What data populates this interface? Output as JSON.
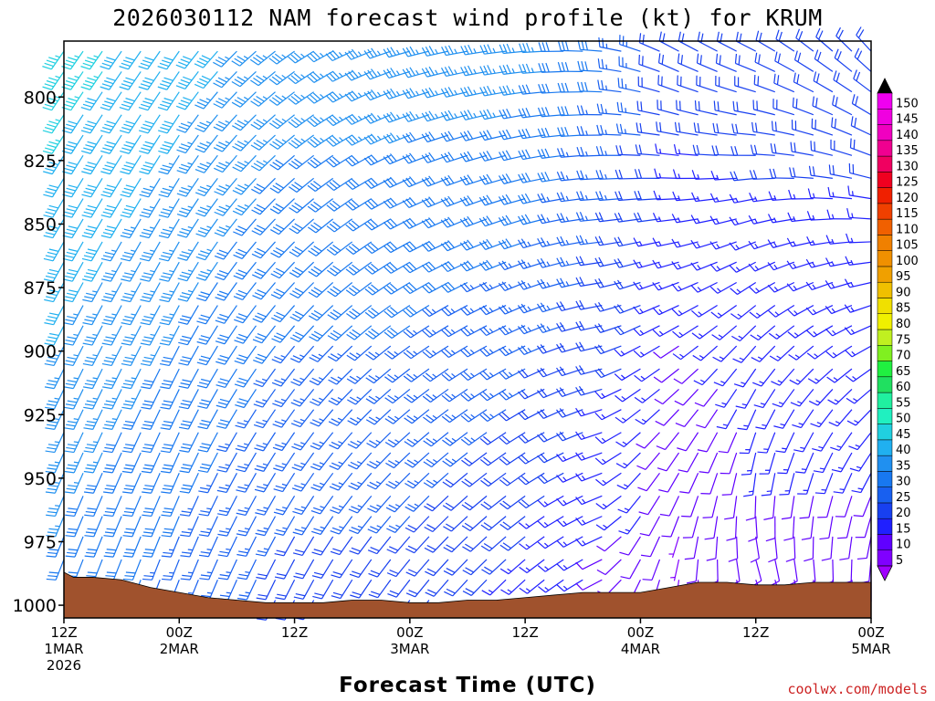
{
  "chart_data": {
    "type": "wind-barb-time-height",
    "title": "2026030112 NAM forecast wind profile (kt) for KRUM",
    "xlabel": "Forecast Time (UTC)",
    "ylabel": "",
    "credit": "coolwx.com/models",
    "x_ticks": [
      {
        "line1": "12Z",
        "line2": "1MAR",
        "line3": "2026",
        "hours": 0
      },
      {
        "line1": "00Z",
        "line2": "2MAR",
        "line3": "",
        "hours": 12
      },
      {
        "line1": "12Z",
        "line2": "",
        "line3": "",
        "hours": 24
      },
      {
        "line1": "00Z",
        "line2": "3MAR",
        "line3": "",
        "hours": 36
      },
      {
        "line1": "12Z",
        "line2": "",
        "line3": "",
        "hours": 48
      },
      {
        "line1": "00Z",
        "line2": "4MAR",
        "line3": "",
        "hours": 60
      },
      {
        "line1": "12Z",
        "line2": "",
        "line3": "",
        "hours": 72
      },
      {
        "line1": "00Z",
        "line2": "5MAR",
        "line3": "",
        "hours": 84
      }
    ],
    "x_range_hours": [
      0,
      84
    ],
    "y_range_mb": [
      1005,
      778
    ],
    "y_ticks": [
      {
        "label": "800",
        "mb": 800
      },
      {
        "label": "825",
        "mb": 825
      },
      {
        "label": "850",
        "mb": 850
      },
      {
        "label": "875",
        "mb": 875
      },
      {
        "label": "900",
        "mb": 900
      },
      {
        "label": "925",
        "mb": 925
      },
      {
        "label": "950",
        "mb": 950
      },
      {
        "label": "975",
        "mb": 975
      },
      {
        "label": "1000",
        "mb": 1000
      }
    ],
    "colorbar": {
      "labels": [
        "5",
        "10",
        "15",
        "20",
        "25",
        "30",
        "35",
        "40",
        "45",
        "50",
        "55",
        "60",
        "65",
        "70",
        "75",
        "80",
        "85",
        "90",
        "95",
        "100",
        "105",
        "110",
        "115",
        "120",
        "125",
        "130",
        "135",
        "140",
        "145",
        "150"
      ],
      "colors": [
        "#8000ff",
        "#6000ff",
        "#2020ff",
        "#1840f0",
        "#1860f0",
        "#1878f0",
        "#2090f0",
        "#20b0f0",
        "#20d0e0",
        "#20f0c0",
        "#20f0a0",
        "#20e060",
        "#20f040",
        "#80f020",
        "#c0f020",
        "#f0f000",
        "#f0e000",
        "#f0c000",
        "#f0a000",
        "#f09000",
        "#f08000",
        "#f06000",
        "#f04000",
        "#f02000",
        "#f00020",
        "#f00060",
        "#f00090",
        "#f000c0",
        "#f000e0",
        "#f000f0"
      ]
    },
    "terrain": {
      "color": "#a0522d",
      "hours": [
        0,
        1,
        3,
        6,
        9,
        12,
        15,
        18,
        21,
        24,
        27,
        30,
        33,
        36,
        39,
        42,
        45,
        48,
        51,
        54,
        57,
        60,
        63,
        66,
        69,
        72,
        75,
        78,
        81,
        84
      ],
      "surface_mb": [
        987,
        989,
        989,
        990,
        993,
        995,
        997,
        998,
        999,
        999,
        999,
        998,
        998,
        999,
        999,
        998,
        998,
        997,
        996,
        995,
        995,
        995,
        993,
        991,
        991,
        992,
        992,
        991,
        991,
        991
      ]
    },
    "barb_levels_mb": [
      782,
      790,
      798,
      807,
      815,
      823,
      832,
      840,
      848,
      857,
      865,
      873,
      882,
      890,
      898,
      907,
      915,
      923,
      932,
      940,
      948,
      957,
      965,
      973,
      982,
      990,
      998
    ],
    "barb_times_hours": [
      0,
      2,
      4,
      6,
      8,
      10,
      12,
      14,
      16,
      18,
      20,
      22,
      24,
      26,
      28,
      30,
      32,
      34,
      36,
      38,
      40,
      42,
      44,
      46,
      48,
      50,
      52,
      54,
      56,
      58,
      60,
      62,
      64,
      66,
      68,
      70,
      72,
      74,
      76,
      78,
      80,
      82,
      84
    ],
    "wind_note": "speed (kt) and direction fields described by regime keyframes; barbs drawn from these",
    "wind_keyframes": [
      {
        "hours": 0,
        "upper_speed_kt": 45,
        "lower_speed_kt": 30,
        "upper_dir_deg": 215,
        "lower_dir_deg": 200
      },
      {
        "hours": 12,
        "upper_speed_kt": 40,
        "lower_speed_kt": 25,
        "upper_dir_deg": 215,
        "lower_dir_deg": 200
      },
      {
        "hours": 24,
        "upper_speed_kt": 35,
        "lower_speed_kt": 20,
        "upper_dir_deg": 235,
        "lower_dir_deg": 205
      },
      {
        "hours": 36,
        "upper_speed_kt": 35,
        "lower_speed_kt": 20,
        "upper_dir_deg": 255,
        "lower_dir_deg": 215
      },
      {
        "hours": 48,
        "upper_speed_kt": 35,
        "lower_speed_kt": 15,
        "upper_dir_deg": 265,
        "lower_dir_deg": 225
      },
      {
        "hours": 56,
        "upper_speed_kt": 30,
        "lower_speed_kt": 10,
        "upper_dir_deg": 275,
        "lower_dir_deg": 240
      },
      {
        "hours": 60,
        "upper_speed_kt": 25,
        "lower_speed_kt": 10,
        "upper_dir_deg": 290,
        "lower_dir_deg": 200
      },
      {
        "hours": 64,
        "upper_speed_kt": 20,
        "lower_speed_kt": 5,
        "upper_dir_deg": 300,
        "lower_dir_deg": 180
      },
      {
        "hours": 72,
        "upper_speed_kt": 20,
        "lower_speed_kt": 10,
        "upper_dir_deg": 300,
        "lower_dir_deg": 150
      },
      {
        "hours": 84,
        "upper_speed_kt": 20,
        "lower_speed_kt": 10,
        "upper_dir_deg": 320,
        "lower_dir_deg": 170
      }
    ]
  }
}
